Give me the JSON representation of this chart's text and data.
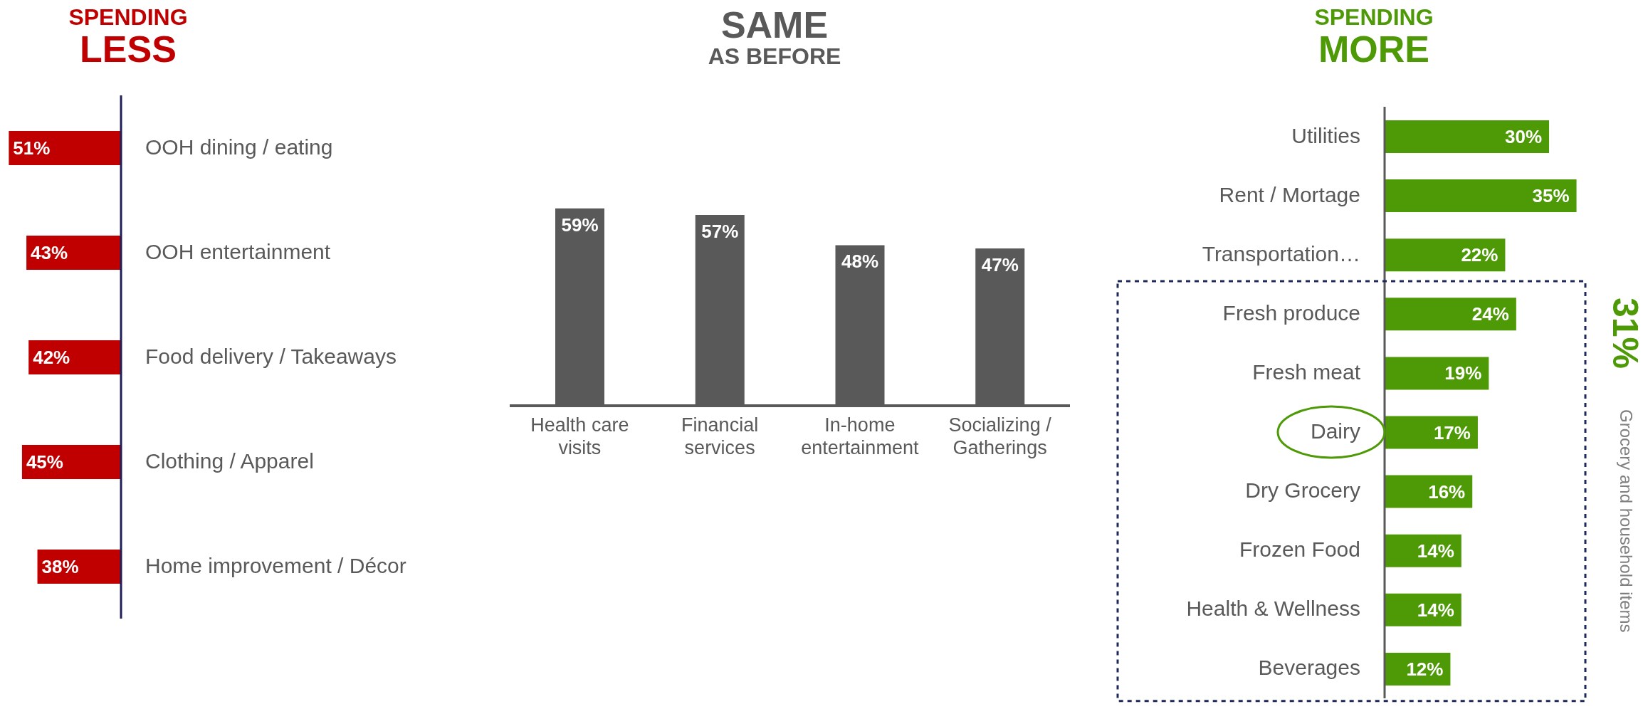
{
  "chart_data": [
    {
      "type": "bar",
      "orientation": "horizontal",
      "title": "SPENDING",
      "subtitle": "LESS",
      "categories": [
        "OOH dining / eating",
        "OOH entertainment",
        "Food delivery / Takeaways",
        "Clothing / Apparel",
        "Home improvement / Décor"
      ],
      "values": [
        51,
        43,
        42,
        45,
        38
      ],
      "value_labels": [
        "51%",
        "43%",
        "42%",
        "45%",
        "38%"
      ],
      "color": "#c00000",
      "xlim": [
        55,
        0
      ],
      "tick_labels": "y"
    },
    {
      "type": "bar",
      "title": "SAME",
      "subtitle": "AS BEFORE",
      "categories": [
        "Health care visits",
        "Financial services",
        "In-home entertainment",
        "Socializing / Gatherings"
      ],
      "values": [
        59,
        57,
        48,
        47
      ],
      "value_labels": [
        "59%",
        "57%",
        "48%",
        "47%"
      ],
      "color": "#595959",
      "tick_labels": "x"
    },
    {
      "type": "bar",
      "orientation": "horizontal",
      "title": "SPENDING",
      "subtitle": "MORE",
      "categories": [
        "Utilities",
        "Rent / Mortage",
        "Transportation…",
        "Fresh produce",
        "Fresh meat",
        "Dairy",
        "Dry Grocery",
        "Frozen Food",
        "Health & Wellness",
        "Beverages"
      ],
      "values": [
        30,
        35,
        22,
        24,
        19,
        17,
        16,
        14,
        14,
        12
      ],
      "value_labels": [
        "30%",
        "35%",
        "22%",
        "24%",
        "19%",
        "17%",
        "16%",
        "14%",
        "14%",
        "12%"
      ],
      "color": "#4e9a06",
      "tick_labels": "y",
      "annotations": [
        "31%",
        "Grocery and household items"
      ]
    }
  ]
}
